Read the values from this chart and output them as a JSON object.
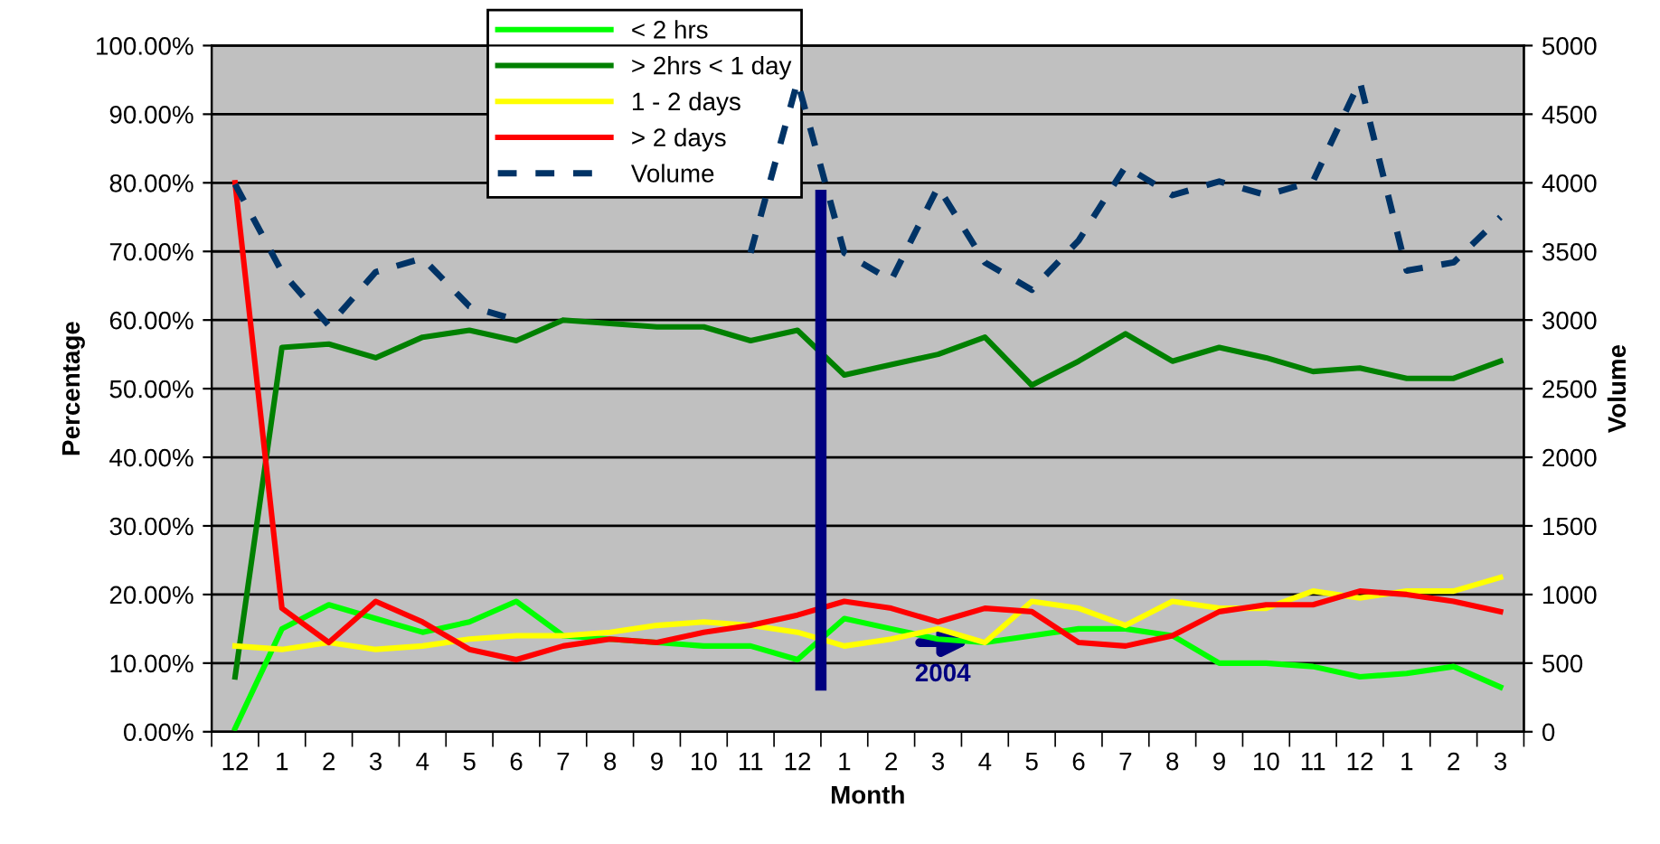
{
  "chart_data": {
    "type": "line",
    "xlabel": "Month",
    "ylabel": "Percentage",
    "y2label": "Volume",
    "categories": [
      "12",
      "1",
      "2",
      "3",
      "4",
      "5",
      "6",
      "7",
      "8",
      "9",
      "10",
      "11",
      "12",
      "1",
      "2",
      "3",
      "4",
      "5",
      "6",
      "7",
      "8",
      "9",
      "10",
      "11",
      "12",
      "1",
      "2",
      "3"
    ],
    "series": [
      {
        "name": "< 2 hrs",
        "color": "#00ff00",
        "values": [
          0.5,
          15,
          18.5,
          16.5,
          14.5,
          16,
          19,
          14,
          13.5,
          13,
          12.5,
          12.5,
          10.5,
          16.5,
          15,
          13.5,
          13,
          14,
          15,
          15,
          14,
          10,
          10,
          9.5,
          8,
          8.5,
          9.5,
          6.5
        ]
      },
      {
        "name": "> 2hrs < 1 day",
        "color": "#008000",
        "values": [
          8,
          56,
          56.5,
          54.5,
          57.5,
          58.5,
          57,
          60,
          59.5,
          59,
          59,
          57,
          58.5,
          52,
          53.5,
          55,
          57.5,
          50.5,
          54,
          58,
          54,
          56,
          54.5,
          52.5,
          53,
          51.5,
          51.5,
          54
        ]
      },
      {
        "name": "1 - 2 days",
        "color": "#ffff00",
        "values": [
          12.5,
          12,
          13,
          12,
          12.5,
          13.5,
          14,
          14,
          14.5,
          15.5,
          16,
          15.5,
          14.5,
          12.5,
          13.5,
          15,
          13,
          19,
          18,
          15.5,
          19,
          18,
          18,
          20.5,
          19.5,
          20.5,
          20.5,
          22.5
        ]
      },
      {
        "name": "> 2 days",
        "color": "#ff0000",
        "values": [
          80,
          18,
          13,
          19,
          16,
          12,
          10.5,
          12.5,
          13.5,
          13,
          14.5,
          15.5,
          17,
          19,
          18,
          16,
          18,
          17.5,
          13,
          12.5,
          14,
          17.5,
          18.5,
          18.5,
          20.5,
          20,
          19,
          17.5
        ]
      },
      {
        "name": "Volume",
        "color": "#003366",
        "axis": "y2",
        "line_style": "dashed",
        "values": [
          3990,
          3350,
          2960,
          3350,
          3450,
          3100,
          3000,
          null,
          null,
          null,
          null,
          3490,
          4740,
          3490,
          3290,
          3970,
          3420,
          3220,
          3580,
          4120,
          3910,
          4010,
          3910,
          4010,
          4740,
          3360,
          3420,
          3750
        ]
      }
    ],
    "ylim": [
      0,
      100
    ],
    "yticks": [
      {
        "value": 0,
        "label": "0.00%"
      },
      {
        "value": 10,
        "label": "10.00%"
      },
      {
        "value": 20,
        "label": "20.00%"
      },
      {
        "value": 30,
        "label": "30.00%"
      },
      {
        "value": 40,
        "label": "40.00%"
      },
      {
        "value": 50,
        "label": "50.00%"
      },
      {
        "value": 60,
        "label": "60.00%"
      },
      {
        "value": 70,
        "label": "70.00%"
      },
      {
        "value": 80,
        "label": "80.00%"
      },
      {
        "value": 90,
        "label": "90.00%"
      },
      {
        "value": 100,
        "label": "100.00%"
      }
    ],
    "y2lim": [
      0,
      5000
    ],
    "y2ticks": [
      0,
      500,
      1000,
      1500,
      2000,
      2500,
      3000,
      3500,
      4000,
      4500,
      5000
    ],
    "annotations": [
      "2004"
    ],
    "grid": "y",
    "legend": "top",
    "marker": "none",
    "line_style": "solid"
  }
}
